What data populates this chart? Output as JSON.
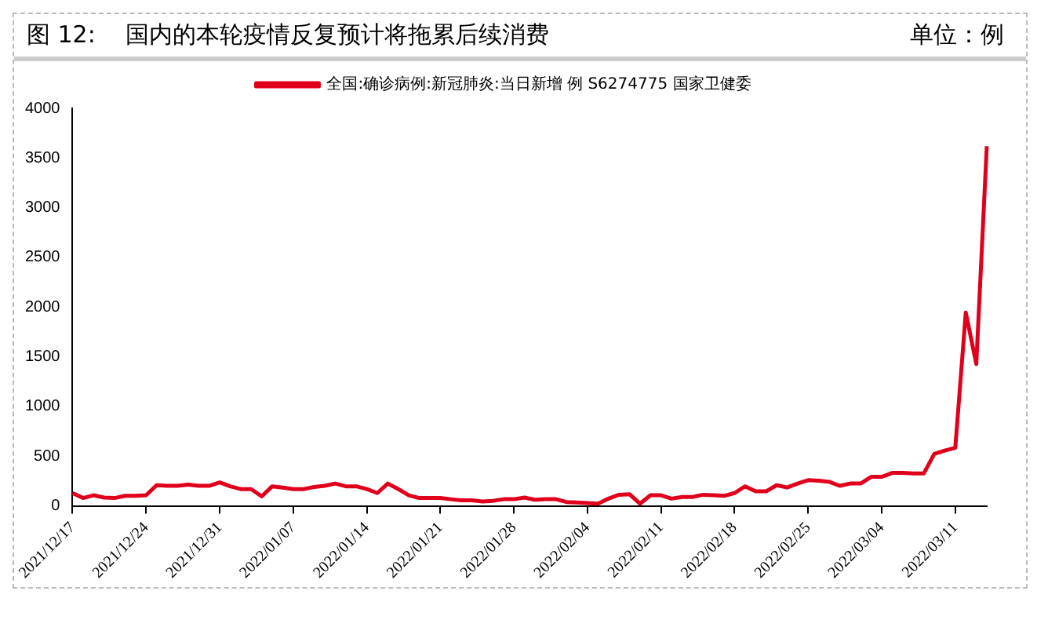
{
  "chart_data": {
    "type": "line",
    "title": "图 12:    国内的本轮疫情反复预计将拖累后续消费",
    "annotations": [
      "单位：例"
    ],
    "categories": [
      "2021/12/17",
      null,
      null,
      null,
      null,
      null,
      null,
      "2021/12/24",
      null,
      null,
      null,
      null,
      null,
      null,
      "2021/12/31",
      null,
      null,
      null,
      null,
      null,
      null,
      "2022/01/07",
      null,
      null,
      null,
      null,
      null,
      null,
      "2022/01/14",
      null,
      null,
      null,
      null,
      null,
      null,
      "2022/01/21",
      null,
      null,
      null,
      null,
      null,
      null,
      "2022/01/28",
      null,
      null,
      null,
      null,
      null,
      null,
      "2022/02/04",
      null,
      null,
      null,
      null,
      null,
      null,
      "2022/02/11",
      null,
      null,
      null,
      null,
      null,
      null,
      "2022/02/18",
      null,
      null,
      null,
      null,
      null,
      null,
      "2022/02/25",
      null,
      null,
      null,
      null,
      null,
      null,
      "2022/03/04",
      null,
      null,
      null,
      null,
      null,
      null,
      "2022/03/11",
      null,
      null,
      null
    ],
    "series": [
      {
        "name": "全国:确诊病例:新冠肺炎:当日新增 例 S6274775 国家卫健委",
        "color": "#e0001b",
        "values": [
          129,
          79,
          107,
          84,
          79,
          101,
          101,
          107,
          208,
          202,
          202,
          214,
          202,
          202,
          236,
          197,
          169,
          169,
          96,
          197,
          185,
          169,
          169,
          191,
          202,
          225,
          197,
          197,
          169,
          129,
          225,
          169,
          107,
          79,
          79,
          79,
          67,
          56,
          56,
          45,
          51,
          67,
          67,
          84,
          62,
          67,
          67,
          39,
          34,
          28,
          22,
          73,
          112,
          118,
          22,
          107,
          107,
          73,
          90,
          90,
          112,
          107,
          101,
          129,
          197,
          146,
          146,
          208,
          185,
          225,
          259,
          253,
          242,
          202,
          225,
          225,
          292,
          292,
          332,
          332,
          326,
          326,
          523,
          556,
          584,
          1945,
          1427,
          3619
        ]
      }
    ],
    "ylim": [
      0,
      4000
    ],
    "yticks": [
      0,
      500,
      1000,
      1500,
      2000,
      2500,
      3000,
      3500,
      4000
    ],
    "grid": false,
    "legend": "top",
    "marker": "none",
    "line_style": "solid"
  }
}
